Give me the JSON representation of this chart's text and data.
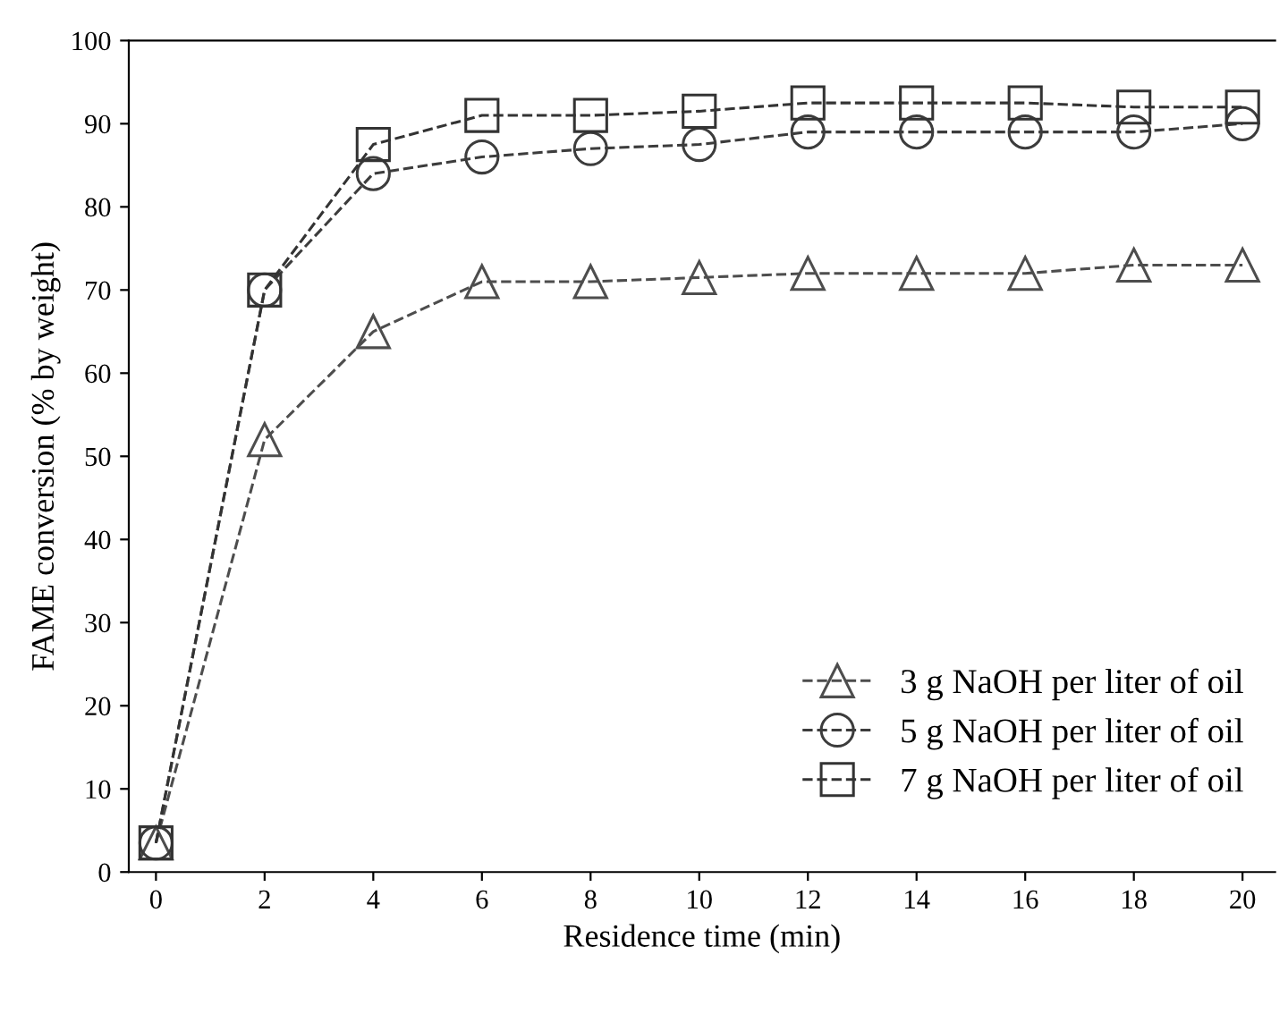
{
  "chart_data": {
    "type": "line",
    "xlabel": "Residence time (min)",
    "ylabel": "FAME conversion (% by weight)",
    "x": [
      0,
      2,
      4,
      6,
      8,
      10,
      12,
      14,
      16,
      18,
      20
    ],
    "series": [
      {
        "name": "3 g NaOH per liter of oil",
        "color": "#4d4d4d",
        "marker": "triangle",
        "values": [
          3.5,
          52,
          65,
          71,
          71,
          71.5,
          72,
          72,
          72,
          73,
          73
        ]
      },
      {
        "name": "5 g NaOH per liter of oil",
        "color": "#3c3c3c",
        "marker": "circle",
        "values": [
          3.5,
          70,
          84,
          86,
          87,
          87.5,
          89,
          89,
          89,
          89,
          90
        ]
      },
      {
        "name": "7 g NaOH per liter of oil",
        "color": "#333333",
        "marker": "square",
        "values": [
          3.5,
          70,
          87.5,
          91,
          91,
          91.5,
          92.5,
          92.5,
          92.5,
          92,
          92
        ]
      }
    ],
    "xlim": [
      -0.5,
      20.6
    ],
    "ylim": [
      0,
      100
    ],
    "xticks": [
      0,
      2,
      4,
      6,
      8,
      10,
      12,
      14,
      16,
      18,
      20
    ],
    "yticks": [
      0,
      10,
      20,
      30,
      40,
      50,
      60,
      70,
      80,
      90,
      100
    ],
    "grid": false,
    "legend": "bottom right",
    "line_style": "dashed"
  }
}
